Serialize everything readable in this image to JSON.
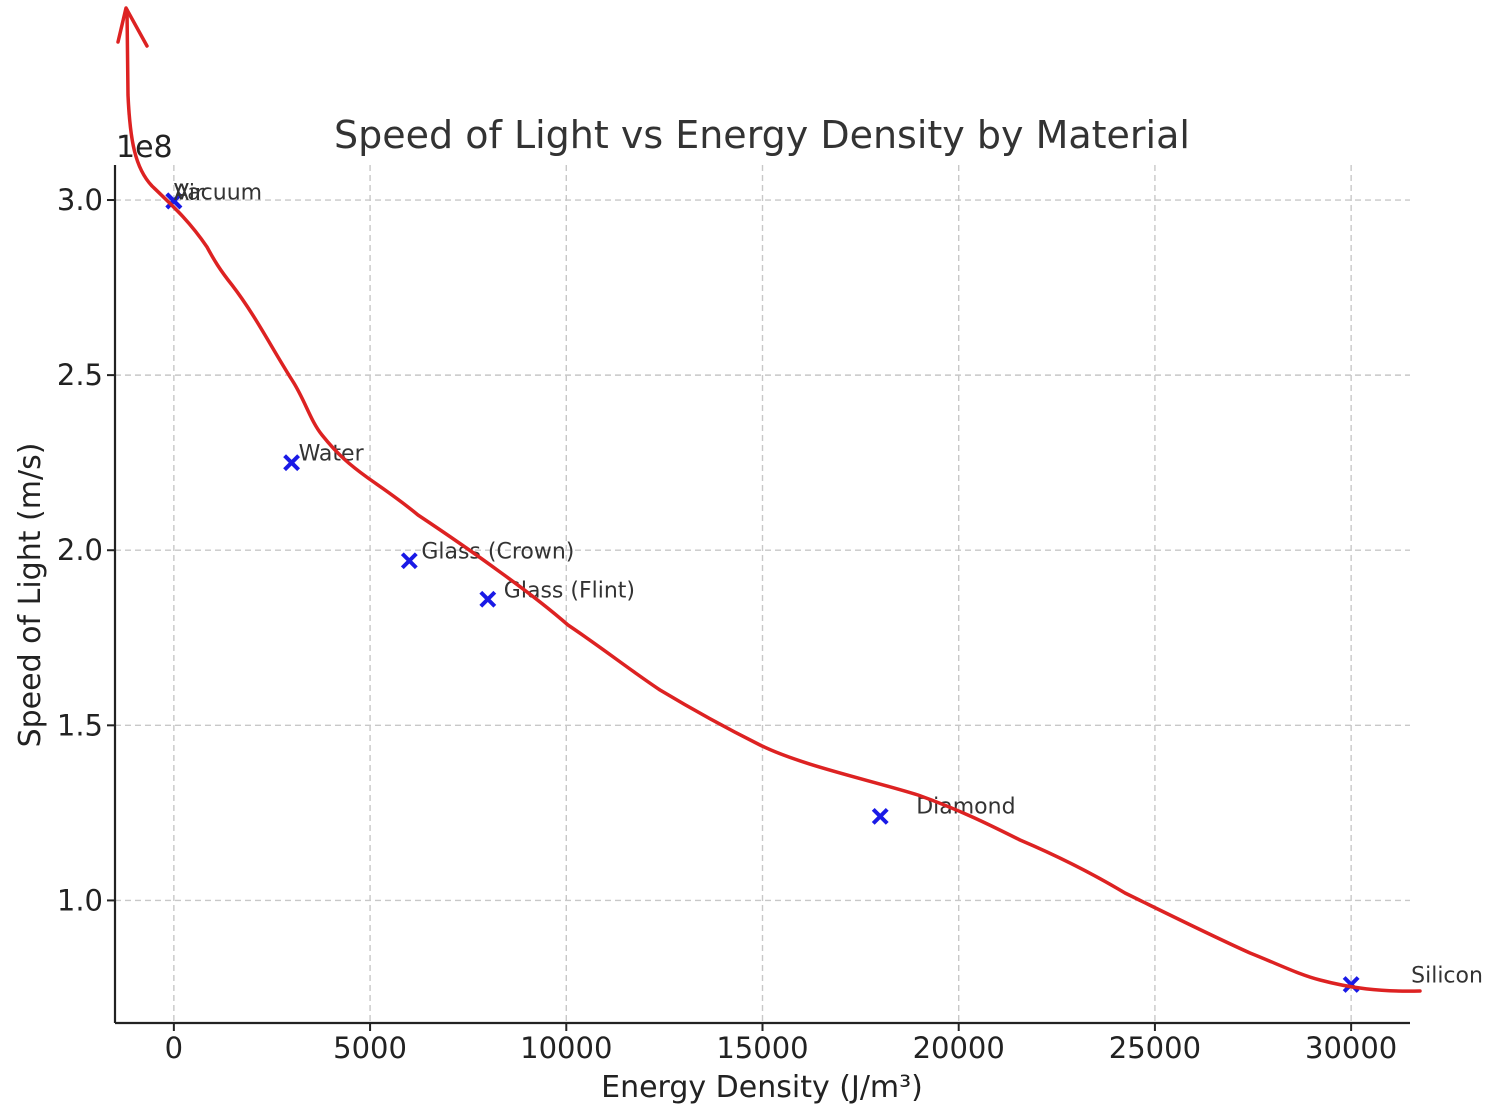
{
  "chart_data": {
    "type": "scatter",
    "title": "Speed of Light vs Energy Density by Material",
    "xlabel": "Energy Density (J/m³)",
    "ylabel": "Speed of Light (m/s)",
    "y_offset_label": "1e8",
    "xlim": [
      -1500,
      31500
    ],
    "ylim": [
      65000000.0,
      310000000.0
    ],
    "xticks": [
      0,
      5000,
      10000,
      15000,
      20000,
      25000,
      30000
    ],
    "yticks": [
      100000000.0,
      150000000.0,
      200000000.0,
      250000000.0,
      300000000.0
    ],
    "xtick_labels": [
      "0",
      "5000",
      "10000",
      "15000",
      "20000",
      "25000",
      "30000"
    ],
    "ytick_labels": [
      "1.0",
      "1.5",
      "2.0",
      "2.5",
      "3.0"
    ],
    "grid": true,
    "marker": "x",
    "marker_color": "#1a1ae6",
    "points": [
      {
        "label": "Vacuum",
        "x": 0,
        "y": 299792458
      },
      {
        "label": "Air",
        "x": 0,
        "y": 299700000
      },
      {
        "label": "Water",
        "x": 3000,
        "y": 225000000
      },
      {
        "label": "Glass (Crown)",
        "x": 6000,
        "y": 197000000
      },
      {
        "label": "Glass (Flint)",
        "x": 8000,
        "y": 186000000
      },
      {
        "label": "Diamond",
        "x": 18000,
        "y": 124000000
      },
      {
        "label": "Silicon",
        "x": 30000,
        "y": 76000000
      }
    ]
  },
  "overlay": {
    "color": "#dd2222",
    "description_note": ""
  }
}
